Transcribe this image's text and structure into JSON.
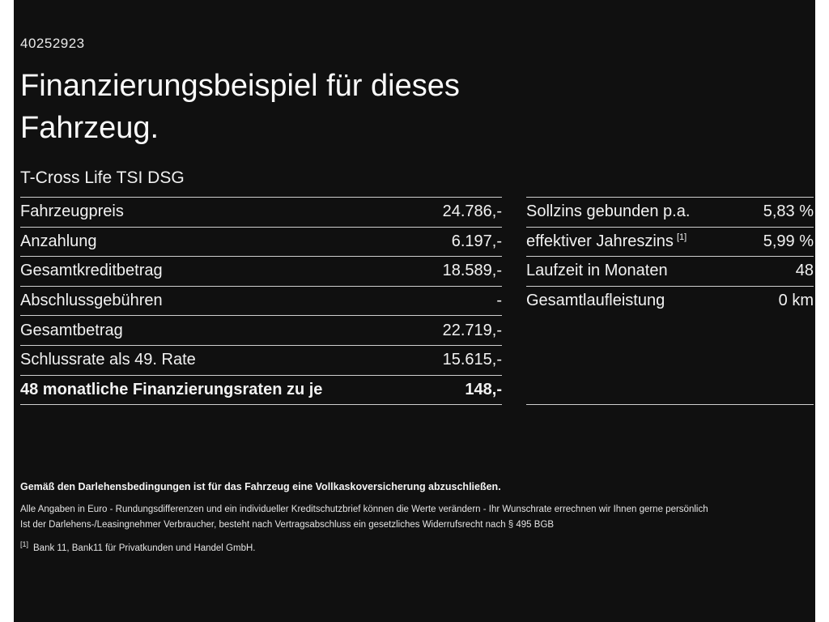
{
  "colors": {
    "background": "#101010",
    "text": "#f2f2f2",
    "divider": "#cfcfcf",
    "edge_bar": "#ffffff"
  },
  "page": {
    "id_number": "40252923",
    "title_line1": "Finanzierungsbeispiel für dieses",
    "title_line2": "Fahrzeug.",
    "subtitle": "T-Cross Life TSI DSG"
  },
  "tables": {
    "left": {
      "rows": [
        {
          "label": "Fahrzeugpreis",
          "value": "24.786,-"
        },
        {
          "label": "Anzahlung",
          "value": "6.197,-"
        },
        {
          "label": "Gesamtkreditbetrag",
          "value": "18.589,-"
        },
        {
          "label": "Abschlussgebühren",
          "value": "-"
        },
        {
          "label": "Gesamtbetrag",
          "value": "22.719,-"
        },
        {
          "label": "Schlussrate als 49. Rate",
          "value": "15.615,-"
        },
        {
          "label": "48 monatliche Finanzierungsraten zu je",
          "value": "148,-"
        }
      ]
    },
    "right": {
      "rows": [
        {
          "label": "Sollzins gebunden p.a.",
          "value": "5,83 %"
        },
        {
          "label": "effektiver Jahreszins",
          "footnote": "[1]",
          "value": "5,99 %"
        },
        {
          "label": "Laufzeit in Monaten",
          "value": "48"
        },
        {
          "label": "Gesamtlaufleistung",
          "value": "0 km"
        }
      ]
    }
  },
  "footer": {
    "insurance_note": "Gemäß den Darlehensbedingungen ist für das Fahrzeug eine Vollkaskoversicherung abzuschließen.",
    "disclaimer1": "Alle Angaben in Euro - Rundungsdifferenzen und ein individueller Kreditschutzbrief können die Werte verändern - Ihr Wunschrate errechnen wir Ihnen gerne persönlich",
    "disclaimer2": "Ist der Darlehens-/Leasingnehmer Verbraucher, besteht nach Vertragsabschluss ein gesetzliches Widerrufsrecht nach § 495 BGB",
    "footnote_ref": "[1]",
    "footnote_text": "Bank 11, Bank11 für Privatkunden und Handel GmbH."
  }
}
